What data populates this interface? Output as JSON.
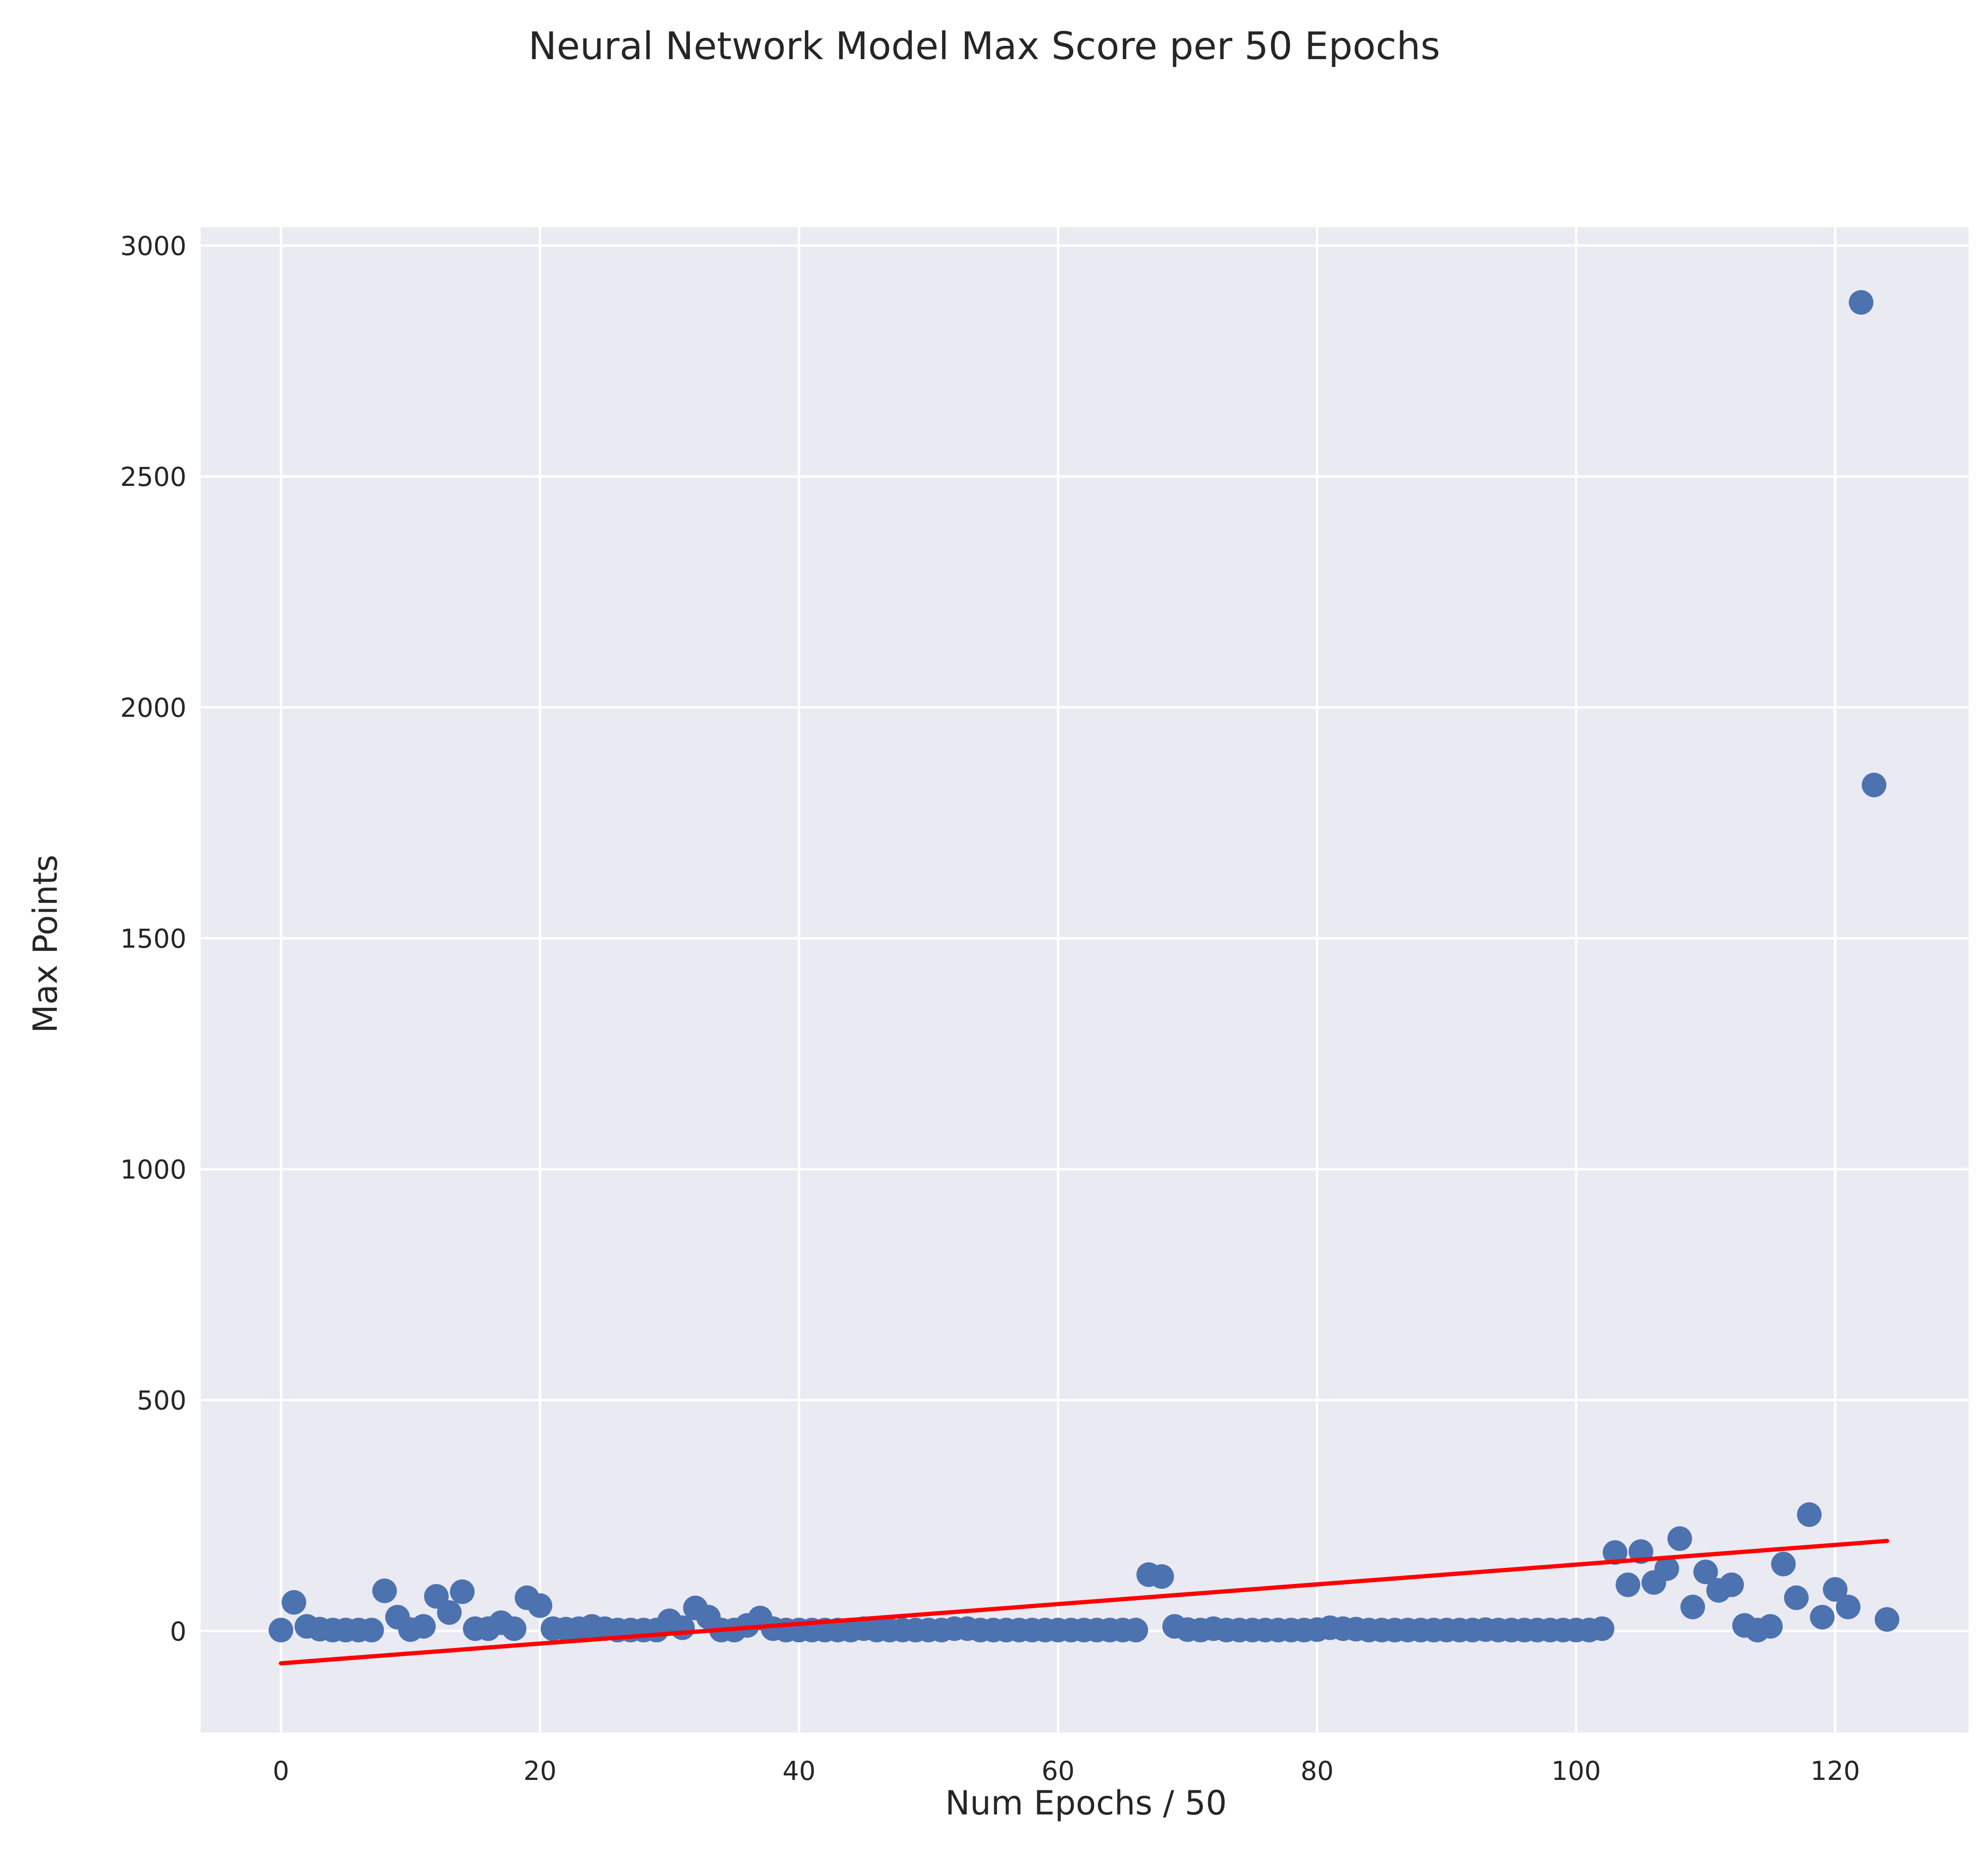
{
  "chart_data": {
    "type": "scatter",
    "title": "Neural Network Model Max Score per 50 Epochs",
    "xlabel": "Num Epochs / 50",
    "ylabel": "Max Points",
    "xlim": [
      -6.2,
      130.3
    ],
    "ylim": [
      -220,
      3040
    ],
    "xticks": [
      0,
      20,
      40,
      60,
      80,
      100,
      120
    ],
    "yticks": [
      0,
      500,
      1000,
      1500,
      2000,
      2500,
      3000
    ],
    "grid": true,
    "legend": "none",
    "colors": {
      "plot_background": "#eaeaf2",
      "grid": "#ffffff",
      "points": "#4c72b0",
      "trend_line": "#ff0000"
    },
    "series": [
      {
        "x": [
          0,
          1,
          2,
          3,
          4,
          5,
          6,
          7,
          8,
          9,
          10,
          11,
          12,
          13,
          14,
          15,
          16,
          17,
          18,
          19,
          20,
          21,
          22,
          23,
          24,
          25,
          26,
          27,
          28,
          29,
          30,
          31,
          32,
          33,
          34,
          35,
          36,
          37,
          38,
          39,
          40,
          41,
          42,
          43,
          44,
          45,
          46,
          47,
          48,
          49,
          50,
          51,
          52,
          53,
          54,
          55,
          56,
          57,
          58,
          59,
          60,
          61,
          62,
          63,
          64,
          65,
          66,
          67,
          68,
          69,
          70,
          71,
          72,
          73,
          74,
          75,
          76,
          77,
          78,
          79,
          80,
          81,
          82,
          83,
          84,
          85,
          86,
          87,
          88,
          89,
          90,
          91,
          92,
          93,
          94,
          95,
          96,
          97,
          98,
          99,
          100,
          101,
          102,
          103,
          104,
          105,
          106,
          107,
          108,
          109,
          110,
          111,
          112,
          113,
          114,
          115,
          116,
          117,
          118,
          119,
          120,
          121,
          122,
          123,
          124
        ],
        "y": [
          2,
          62,
          10,
          4,
          2,
          2,
          2,
          2,
          87,
          30,
          3,
          10,
          75,
          40,
          85,
          5,
          5,
          18,
          5,
          72,
          55,
          5,
          4,
          5,
          10,
          5,
          2,
          2,
          2,
          2,
          22,
          7,
          50,
          30,
          2,
          2,
          12,
          28,
          5,
          2,
          2,
          2,
          2,
          2,
          2,
          5,
          2,
          2,
          2,
          2,
          2,
          2,
          5,
          5,
          2,
          2,
          2,
          2,
          2,
          2,
          2,
          2,
          2,
          2,
          2,
          2,
          2,
          122,
          118,
          10,
          3,
          2,
          5,
          2,
          2,
          2,
          2,
          2,
          2,
          2,
          3,
          7,
          5,
          4,
          2,
          2,
          2,
          2,
          2,
          2,
          2,
          2,
          2,
          3,
          2,
          2,
          2,
          2,
          2,
          2,
          2,
          2,
          5,
          170,
          100,
          172,
          105,
          135,
          200,
          52,
          128,
          88,
          100,
          12,
          2,
          10,
          145,
          72,
          252,
          30,
          90,
          52,
          2877,
          1832,
          25
        ]
      }
    ],
    "trend_line": {
      "x": [
        0,
        124
      ],
      "y": [
        -70,
        195
      ]
    }
  }
}
